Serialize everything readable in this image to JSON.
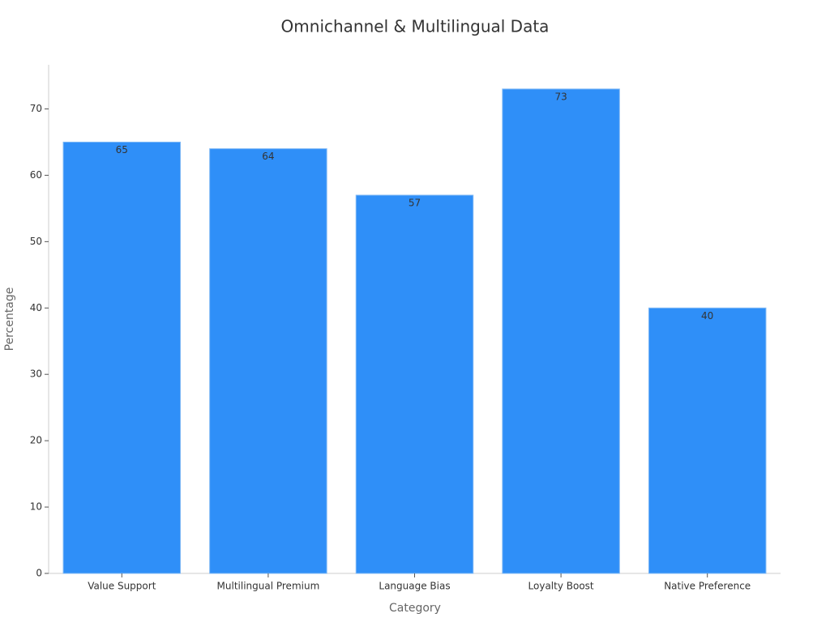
{
  "chart_data": {
    "type": "bar",
    "title": "Omnichannel & Multilingual Data",
    "x_label": "Category",
    "y_label": "Percentage",
    "categories": [
      "Value Support",
      "Multilingual Premium",
      "Language Bias",
      "Loyalty Boost",
      "Native Preference"
    ],
    "values": [
      65,
      64,
      57,
      73,
      40
    ],
    "color": "#2f8ff8",
    "ylim": [
      0,
      76.65
    ],
    "yticks": [
      0,
      10,
      20,
      30,
      40,
      50,
      60,
      70
    ],
    "grid": false
  }
}
